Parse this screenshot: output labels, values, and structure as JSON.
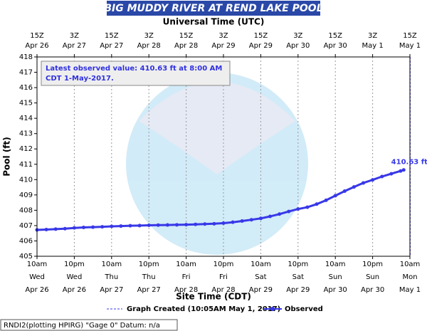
{
  "chart_data": {
    "type": "line",
    "title": "BIG MUDDY RIVER AT REND LAKE POOL",
    "x2_label": "Universal Time (UTC)",
    "x_label": "Site Time (CDT)",
    "y_label": "Pool (ft)",
    "ylim": [
      405,
      418
    ],
    "yticks": [
      405,
      406,
      407,
      408,
      409,
      410,
      411,
      412,
      413,
      414,
      415,
      416,
      417,
      418
    ],
    "xlim": [
      "04-26 10:00",
      "05-01 10:00"
    ],
    "xticks": [
      {
        "value": "04-26 10:00",
        "label": [
          "10am",
          "Wed",
          "Apr 26"
        ]
      },
      {
        "value": "04-26 22:00",
        "label": [
          "10pm",
          "Wed",
          "Apr 26"
        ]
      },
      {
        "value": "04-27 10:00",
        "label": [
          "10am",
          "Thu",
          "Apr 27"
        ]
      },
      {
        "value": "04-27 22:00",
        "label": [
          "10pm",
          "Thu",
          "Apr 27"
        ]
      },
      {
        "value": "04-28 10:00",
        "label": [
          "10am",
          "Fri",
          "Apr 28"
        ]
      },
      {
        "value": "04-28 22:00",
        "label": [
          "10pm",
          "Fri",
          "Apr 28"
        ]
      },
      {
        "value": "04-29 10:00",
        "label": [
          "10am",
          "Sat",
          "Apr 29"
        ]
      },
      {
        "value": "04-29 22:00",
        "label": [
          "10pm",
          "Sat",
          "Apr 29"
        ]
      },
      {
        "value": "04-30 10:00",
        "label": [
          "10am",
          "Sun",
          "Apr 30"
        ]
      },
      {
        "value": "04-30 22:00",
        "label": [
          "10pm",
          "Sun",
          "Apr 30"
        ]
      },
      {
        "value": "05-01 10:00",
        "label": [
          "10am",
          "Mon",
          "May 1"
        ]
      }
    ],
    "x2ticks": [
      {
        "value": "04-26 10:00",
        "label": [
          "15Z",
          "Apr 26"
        ]
      },
      {
        "value": "04-26 22:00",
        "label": [
          "3Z",
          "Apr 27"
        ]
      },
      {
        "value": "04-27 10:00",
        "label": [
          "15Z",
          "Apr 27"
        ]
      },
      {
        "value": "04-27 22:00",
        "label": [
          "3Z",
          "Apr 28"
        ]
      },
      {
        "value": "04-28 10:00",
        "label": [
          "15Z",
          "Apr 28"
        ]
      },
      {
        "value": "04-28 22:00",
        "label": [
          "3Z",
          "Apr 29"
        ]
      },
      {
        "value": "04-29 10:00",
        "label": [
          "15Z",
          "Apr 29"
        ]
      },
      {
        "value": "04-29 22:00",
        "label": [
          "3Z",
          "Apr 30"
        ]
      },
      {
        "value": "04-30 10:00",
        "label": [
          "15Z",
          "Apr 30"
        ]
      },
      {
        "value": "04-30 22:00",
        "label": [
          "3Z",
          "May 1"
        ]
      },
      {
        "value": "05-01 10:00",
        "label": [
          "15Z",
          "May 1"
        ]
      }
    ],
    "grid": true,
    "x": [
      "04-26 10:00",
      "04-26 13:00",
      "04-26 16:00",
      "04-26 19:00",
      "04-26 22:00",
      "04-27 01:00",
      "04-27 04:00",
      "04-27 07:00",
      "04-27 10:00",
      "04-27 13:00",
      "04-27 16:00",
      "04-27 19:00",
      "04-27 22:00",
      "04-28 01:00",
      "04-28 04:00",
      "04-28 07:00",
      "04-28 10:00",
      "04-28 13:00",
      "04-28 16:00",
      "04-28 19:00",
      "04-28 22:00",
      "04-29 01:00",
      "04-29 04:00",
      "04-29 07:00",
      "04-29 10:00",
      "04-29 13:00",
      "04-29 16:00",
      "04-29 19:00",
      "04-29 22:00",
      "04-30 01:00",
      "04-30 04:00",
      "04-30 07:00",
      "04-30 10:00",
      "04-30 13:00",
      "04-30 16:00",
      "04-30 19:00",
      "04-30 22:00",
      "05-01 01:00",
      "05-01 04:00",
      "05-01 07:00",
      "05-01 08:00"
    ],
    "series": [
      {
        "name": "Observed",
        "color": "#3838e8",
        "values": [
          406.72,
          406.74,
          406.77,
          406.8,
          406.85,
          406.88,
          406.9,
          406.92,
          406.95,
          406.97,
          406.99,
          407.0,
          407.02,
          407.03,
          407.04,
          407.05,
          407.06,
          407.08,
          407.1,
          407.12,
          407.16,
          407.22,
          407.3,
          407.38,
          407.47,
          407.6,
          407.75,
          407.92,
          408.08,
          408.2,
          408.4,
          408.65,
          408.95,
          409.25,
          409.52,
          409.78,
          409.98,
          410.2,
          410.38,
          410.56,
          410.63
        ]
      }
    ],
    "last_value_label": "410.63 ft",
    "annotation": [
      "Latest observed value: 410.63 ft at 8:00 AM",
      "CDT 1-May-2017."
    ],
    "graph_created": {
      "x": "05-01 10:05",
      "label": "Graph Created (10:05AM May 1, 2017)"
    },
    "footer": "RNDI2(plotting HPIRG) \"Gage 0\" Datum: n/a"
  }
}
